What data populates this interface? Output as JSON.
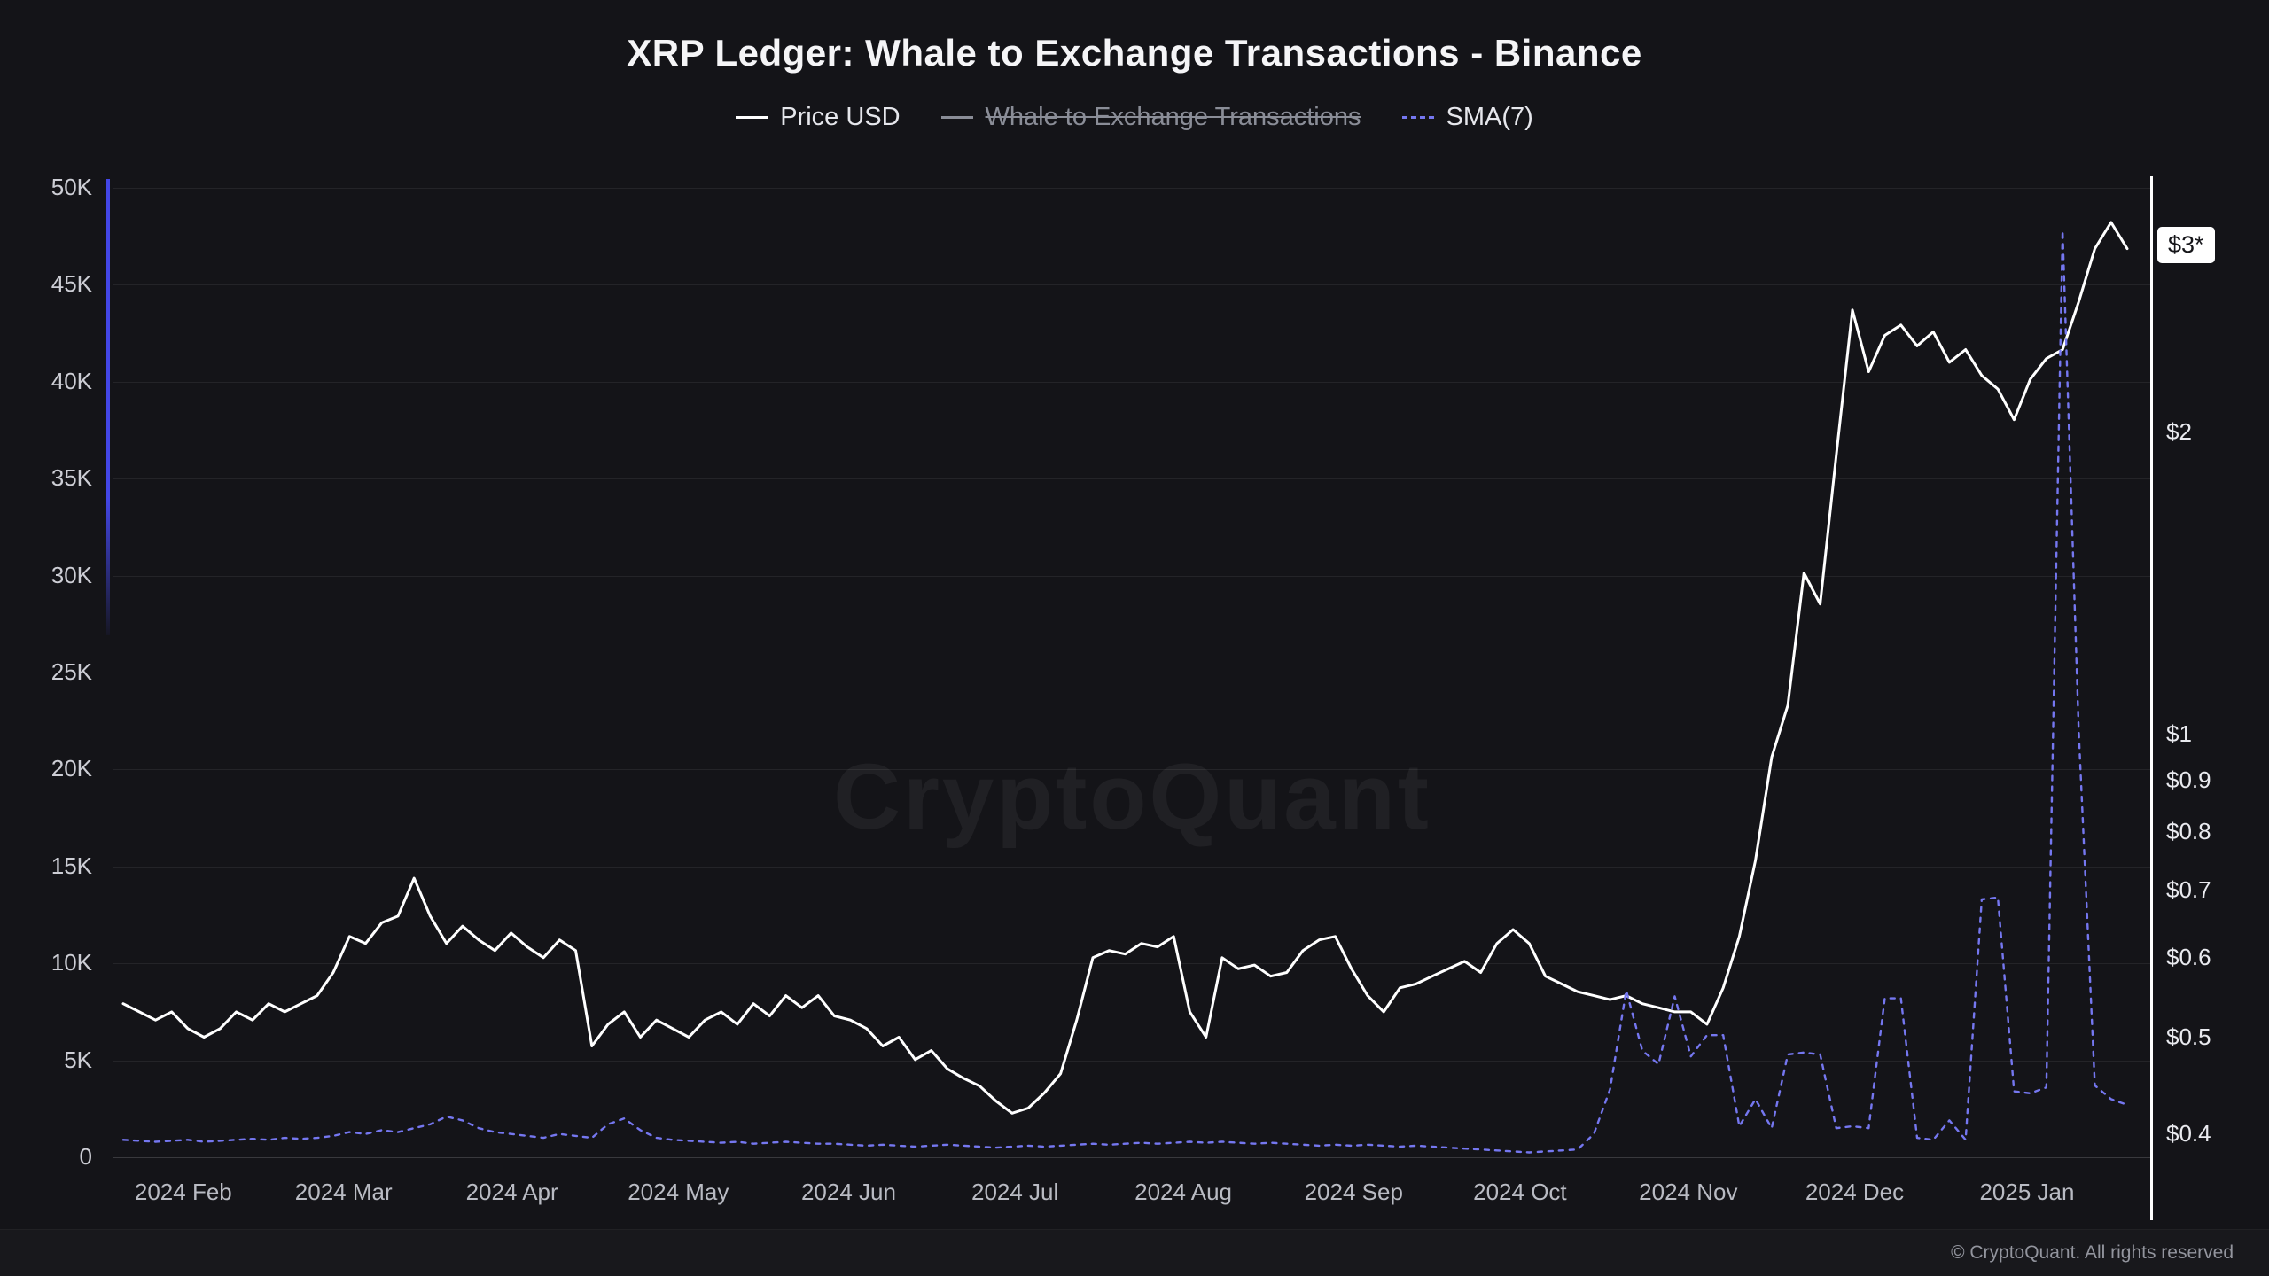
{
  "title": "XRP Ledger: Whale to Exchange Transactions - Binance",
  "watermark": "CryptoQuant",
  "price_badge": "$3*",
  "footer": "© CryptoQuant. All rights reserved",
  "colors": {
    "background": "#141418",
    "price_line": "#ffffff",
    "sma_line": "#7577f0",
    "disabled_legend": "#8a8d97",
    "badge_bg": "#ffffff"
  },
  "legend": [
    {
      "label": "Price USD",
      "color": "#ffffff",
      "style": "solid",
      "disabled": false
    },
    {
      "label": "Whale to Exchange Transactions",
      "color": "#8a8d97",
      "style": "solid",
      "disabled": true
    },
    {
      "label": "SMA(7)",
      "color": "#7577f0",
      "style": "dashed",
      "disabled": false
    }
  ],
  "chart_data": {
    "type": "line",
    "title": "XRP Ledger: Whale to Exchange Transactions - Binance",
    "x_range": [
      "2024-01-21",
      "2025-01-19"
    ],
    "x_axis_months": [
      {
        "label": "2024 Feb",
        "pos": 0.03
      },
      {
        "label": "2024 Mar",
        "pos": 0.11
      },
      {
        "label": "2024 Apr",
        "pos": 0.194
      },
      {
        "label": "2024 May",
        "pos": 0.277
      },
      {
        "label": "2024 Jun",
        "pos": 0.362
      },
      {
        "label": "2024 Jul",
        "pos": 0.445
      },
      {
        "label": "2024 Aug",
        "pos": 0.529
      },
      {
        "label": "2024 Sep",
        "pos": 0.614
      },
      {
        "label": "2024 Oct",
        "pos": 0.697
      },
      {
        "label": "2024 Nov",
        "pos": 0.781
      },
      {
        "label": "2024 Dec",
        "pos": 0.864
      },
      {
        "label": "2025 Jan",
        "pos": 0.95
      }
    ],
    "left_axis": {
      "name": "Whale to Exchange Transactions",
      "range": [
        0,
        50000
      ],
      "grid": true,
      "ticks": [
        {
          "v": 0,
          "label": "0"
        },
        {
          "v": 5000,
          "label": "5K"
        },
        {
          "v": 10000,
          "label": "10K"
        },
        {
          "v": 15000,
          "label": "15K"
        },
        {
          "v": 20000,
          "label": "20K"
        },
        {
          "v": 25000,
          "label": "25K"
        },
        {
          "v": 30000,
          "label": "30K"
        },
        {
          "v": 35000,
          "label": "35K"
        },
        {
          "v": 40000,
          "label": "40K"
        },
        {
          "v": 45000,
          "label": "45K"
        },
        {
          "v": 50000,
          "label": "50K"
        }
      ]
    },
    "right_axis": {
      "name": "Price USD",
      "scale": "log",
      "range": [
        0.38,
        3.59
      ],
      "ticks": [
        {
          "v": 0.4,
          "label": "$0.4"
        },
        {
          "v": 0.5,
          "label": "$0.5"
        },
        {
          "v": 0.6,
          "label": "$0.6"
        },
        {
          "v": 0.7,
          "label": "$0.7"
        },
        {
          "v": 0.8,
          "label": "$0.8"
        },
        {
          "v": 0.9,
          "label": "$0.9"
        },
        {
          "v": 1,
          "label": "$1"
        },
        {
          "v": 2,
          "label": "$2"
        }
      ]
    },
    "legend_position": "top",
    "series": [
      {
        "id": "price-line",
        "name": "Price USD",
        "axis": "right",
        "color": "#ffffff",
        "dash": false,
        "hidden": false,
        "values": [
          0.54,
          0.53,
          0.52,
          0.53,
          0.51,
          0.5,
          0.51,
          0.53,
          0.52,
          0.54,
          0.53,
          0.54,
          0.55,
          0.58,
          0.63,
          0.62,
          0.65,
          0.66,
          0.72,
          0.66,
          0.62,
          0.645,
          0.625,
          0.61,
          0.635,
          0.615,
          0.6,
          0.625,
          0.61,
          0.49,
          0.515,
          0.53,
          0.5,
          0.52,
          0.51,
          0.5,
          0.52,
          0.53,
          0.515,
          0.54,
          0.525,
          0.55,
          0.535,
          0.55,
          0.525,
          0.52,
          0.51,
          0.49,
          0.5,
          0.475,
          0.485,
          0.465,
          0.455,
          0.447,
          0.432,
          0.42,
          0.425,
          0.44,
          0.46,
          0.52,
          0.6,
          0.61,
          0.605,
          0.62,
          0.615,
          0.63,
          0.53,
          0.5,
          0.6,
          0.585,
          0.59,
          0.575,
          0.58,
          0.61,
          0.625,
          0.63,
          0.585,
          0.55,
          0.53,
          0.56,
          0.565,
          0.575,
          0.585,
          0.595,
          0.58,
          0.62,
          0.64,
          0.62,
          0.575,
          0.565,
          0.555,
          0.55,
          0.545,
          0.55,
          0.54,
          0.535,
          0.53,
          0.53,
          0.515,
          0.56,
          0.63,
          0.75,
          0.95,
          1.07,
          1.45,
          1.35,
          1.9,
          2.65,
          2.3,
          2.5,
          2.56,
          2.44,
          2.52,
          2.35,
          2.42,
          2.28,
          2.21,
          2.06,
          2.26,
          2.37,
          2.42,
          2.7,
          3.05,
          3.24,
          3.05
        ]
      },
      {
        "id": "sma-line",
        "name": "SMA(7)",
        "axis": "left",
        "color": "#7577f0",
        "dash": true,
        "hidden": false,
        "values": [
          900,
          850,
          800,
          850,
          900,
          800,
          850,
          900,
          950,
          900,
          1000,
          950,
          1000,
          1100,
          1300,
          1200,
          1400,
          1300,
          1500,
          1700,
          2100,
          1900,
          1500,
          1300,
          1200,
          1100,
          1000,
          1200,
          1100,
          1000,
          1700,
          2000,
          1400,
          1000,
          900,
          850,
          800,
          750,
          800,
          700,
          750,
          800,
          750,
          700,
          700,
          650,
          600,
          650,
          600,
          550,
          600,
          650,
          600,
          550,
          500,
          550,
          600,
          550,
          600,
          650,
          700,
          650,
          700,
          750,
          700,
          750,
          800,
          750,
          800,
          750,
          700,
          750,
          700,
          650,
          600,
          650,
          600,
          650,
          600,
          550,
          600,
          550,
          500,
          450,
          400,
          350,
          300,
          250,
          300,
          350,
          400,
          1200,
          3500,
          8600,
          5500,
          4800,
          8300,
          5200,
          6300,
          6300,
          1600,
          3000,
          1500,
          5300,
          5400,
          5300,
          1500,
          1600,
          1500,
          8200,
          8200,
          1000,
          900,
          1900,
          900,
          13300,
          13400,
          3400,
          3300,
          3600,
          47800,
          22000,
          3700,
          3000,
          2700
        ]
      },
      {
        "id": "whale-raw",
        "name": "Whale to Exchange Transactions",
        "axis": "left",
        "color": "#8a8d97",
        "dash": false,
        "hidden": true,
        "values": []
      }
    ]
  }
}
